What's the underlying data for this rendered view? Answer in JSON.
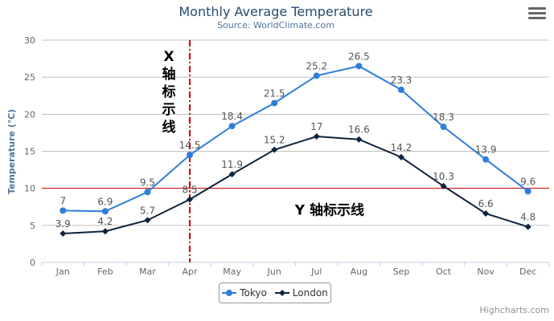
{
  "chart_data": {
    "type": "line",
    "title": "Monthly Average Temperature",
    "subtitle": "Source: WorldClimate.com",
    "xlabel": "",
    "ylabel": "Temperature (℃)",
    "ylim": [
      0,
      30
    ],
    "yticks": [
      0,
      5,
      10,
      15,
      20,
      25,
      30
    ],
    "grid": true,
    "legend_position": "bottom-center",
    "categories": [
      "Jan",
      "Feb",
      "Mar",
      "Apr",
      "May",
      "Jun",
      "Jul",
      "Aug",
      "Sep",
      "Oct",
      "Nov",
      "Dec"
    ],
    "series": [
      {
        "name": "Tokyo",
        "values": [
          7,
          6.9,
          9.5,
          14.5,
          18.4,
          21.5,
          25.2,
          26.5,
          23.3,
          18.3,
          13.9,
          9.6
        ],
        "color": "#2f7ed8",
        "marker": "circle"
      },
      {
        "name": "London",
        "values": [
          3.9,
          4.2,
          5.7,
          8.5,
          11.9,
          15.2,
          17,
          16.6,
          14.2,
          10.3,
          6.6,
          4.8
        ],
        "color": "#0d233a",
        "marker": "diamond"
      }
    ],
    "plot_lines": {
      "x": {
        "category": "Apr",
        "label": "X 轴标示线",
        "color": "#cc0000",
        "style": "dashdot"
      },
      "y": {
        "value": 10,
        "label": "Y 轴标示线",
        "color": "#cc0000",
        "style": "solid"
      }
    },
    "credits": "Highcharts.com"
  }
}
